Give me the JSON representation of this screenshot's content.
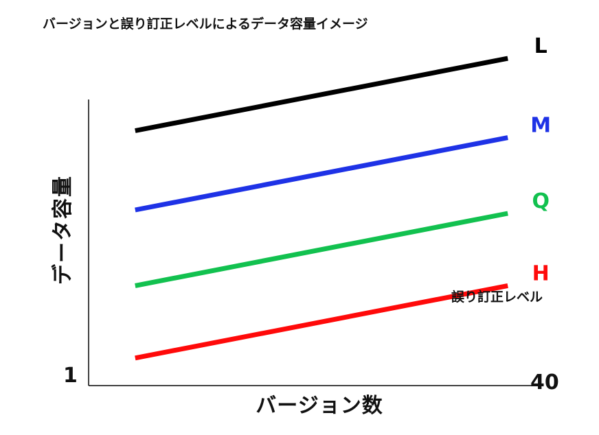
{
  "chart_data": {
    "type": "line",
    "title": "バージョンと誤り訂正レベルによるデータ容量イメージ",
    "xlabel": "バージョン数",
    "ylabel": "データ容量",
    "x_ticks": [
      "1",
      "40"
    ],
    "legend_title": "誤り訂正レベル",
    "grid": false,
    "series": [
      {
        "name": "L",
        "color": "#000000",
        "points": [
          [
            5,
            0.74
          ],
          [
            37,
            0.95
          ]
        ]
      },
      {
        "name": "M",
        "color": "#1e32e6",
        "points": [
          [
            5,
            0.51
          ],
          [
            37,
            0.72
          ]
        ]
      },
      {
        "name": "Q",
        "color": "#12c14f",
        "points": [
          [
            5,
            0.29
          ],
          [
            37,
            0.5
          ]
        ]
      },
      {
        "name": "H",
        "color": "#ff0a0a",
        "points": [
          [
            5,
            0.08
          ],
          [
            37,
            0.29
          ]
        ]
      }
    ],
    "xlim": [
      1,
      40
    ],
    "ylim": [
      0,
      1
    ]
  }
}
